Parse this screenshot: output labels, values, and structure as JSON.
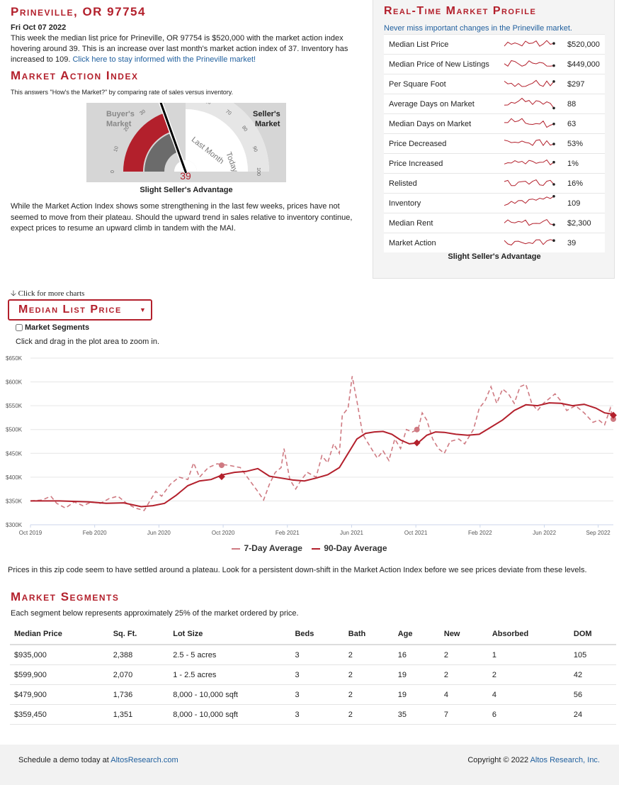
{
  "header": {
    "location": "Prineville, OR 97754",
    "date": "Fri Oct 07 2022",
    "summary": "This week the median list price for Prineville, OR 97754 is $520,000 with the market action index hovering around 39. This is an increase over last month's market action index of 37. Inventory has increased to 109.",
    "summary_link": "Click here to stay informed with the Prineville market!"
  },
  "mai": {
    "title": "Market Action Index",
    "subtitle": "This answers \"How's the Market?\" by comparing rate of sales versus inventory.",
    "buyers_label_1": "Buyer's",
    "buyers_label_2": "Market",
    "sellers_label_1": "Seller's",
    "sellers_label_2": "Market",
    "ticks": [
      "0",
      "10",
      "20",
      "30",
      "40",
      "50",
      "60",
      "70",
      "80",
      "90",
      "100"
    ],
    "last_month_label": "Last Month",
    "today_label": "Today",
    "value": 39,
    "value_text": "39",
    "last_month_value": 37,
    "verdict": "Slight Seller's Advantage",
    "commentary": "While the Market Action Index shows some strengthening in the last few weeks, prices have not seemed to move from their plateau. Should the upward trend in sales relative to inventory continue, expect prices to resume an upward climb in tandem with the MAI."
  },
  "profile": {
    "title": "Real-Time Market Profile",
    "link": "Never miss important changes in the Prineville market.",
    "rows": [
      {
        "label": "Median List Price",
        "value": "$520,000"
      },
      {
        "label": "Median Price of New Listings",
        "value": "$449,000"
      },
      {
        "label": "Per Square Foot",
        "value": "$297"
      },
      {
        "label": "Average Days on Market",
        "value": "88"
      },
      {
        "label": "Median Days on Market",
        "value": "63"
      },
      {
        "label": "Price Decreased",
        "value": "53%"
      },
      {
        "label": "Price Increased",
        "value": "1%"
      },
      {
        "label": "Relisted",
        "value": "16%"
      },
      {
        "label": "Inventory",
        "value": "109"
      },
      {
        "label": "Median Rent",
        "value": "$2,300"
      },
      {
        "label": "Market Action",
        "value": "39"
      }
    ],
    "footer": "Slight Seller's Advantage"
  },
  "chart_controls": {
    "more_charts": "Click for more charts",
    "dropdown_label": "Median List Price",
    "segments_checkbox": "Market Segments",
    "zoom_hint": "Click and drag in the plot area to zoom in."
  },
  "chart_data": {
    "type": "line",
    "title": "Median List Price",
    "ylim": [
      300000,
      650000
    ],
    "y_ticks": [
      "$300K",
      "$350K",
      "$400K",
      "$450K",
      "$500K",
      "$550K",
      "$600K",
      "$650K"
    ],
    "y_tick_values": [
      300000,
      350000,
      400000,
      450000,
      500000,
      550000,
      600000,
      650000
    ],
    "x_ticks": [
      "Oct 2019",
      "Feb 2020",
      "Jun 2020",
      "Oct 2020",
      "Feb 2021",
      "Jun 2021",
      "Oct 2021",
      "Feb 2022",
      "Jun 2022",
      "Sep 2022"
    ],
    "x_tick_pos": [
      0,
      0.1102,
      0.2204,
      0.3306,
      0.4408,
      0.551,
      0.6612,
      0.7714,
      0.8816,
      0.974
    ],
    "series": [
      {
        "name": "7-Day Average",
        "style": "dashed",
        "color": "#cf7a82",
        "points": [
          [
            0,
            350000
          ],
          [
            0.02,
            352000
          ],
          [
            0.035,
            360000
          ],
          [
            0.045,
            345000
          ],
          [
            0.06,
            335000
          ],
          [
            0.075,
            348000
          ],
          [
            0.09,
            340000
          ],
          [
            0.105,
            348000
          ],
          [
            0.12,
            345000
          ],
          [
            0.135,
            355000
          ],
          [
            0.15,
            360000
          ],
          [
            0.165,
            345000
          ],
          [
            0.18,
            335000
          ],
          [
            0.195,
            330000
          ],
          [
            0.205,
            350000
          ],
          [
            0.215,
            370000
          ],
          [
            0.225,
            360000
          ],
          [
            0.24,
            385000
          ],
          [
            0.255,
            400000
          ],
          [
            0.27,
            395000
          ],
          [
            0.28,
            430000
          ],
          [
            0.29,
            400000
          ],
          [
            0.305,
            420000
          ],
          [
            0.32,
            428000
          ],
          [
            0.34,
            425000
          ],
          [
            0.36,
            420000
          ],
          [
            0.375,
            395000
          ],
          [
            0.39,
            370000
          ],
          [
            0.4,
            352000
          ],
          [
            0.41,
            385000
          ],
          [
            0.42,
            410000
          ],
          [
            0.43,
            420000
          ],
          [
            0.435,
            460000
          ],
          [
            0.445,
            395000
          ],
          [
            0.455,
            375000
          ],
          [
            0.465,
            395000
          ],
          [
            0.475,
            410000
          ],
          [
            0.49,
            400000
          ],
          [
            0.5,
            445000
          ],
          [
            0.51,
            430000
          ],
          [
            0.52,
            470000
          ],
          [
            0.53,
            450000
          ],
          [
            0.535,
            530000
          ],
          [
            0.545,
            545000
          ],
          [
            0.552,
            612000
          ],
          [
            0.56,
            560000
          ],
          [
            0.57,
            490000
          ],
          [
            0.58,
            470000
          ],
          [
            0.595,
            440000
          ],
          [
            0.605,
            455000
          ],
          [
            0.615,
            435000
          ],
          [
            0.625,
            480000
          ],
          [
            0.635,
            460000
          ],
          [
            0.645,
            500000
          ],
          [
            0.655,
            495000
          ],
          [
            0.665,
            500000
          ],
          [
            0.672,
            535000
          ],
          [
            0.68,
            520000
          ],
          [
            0.69,
            480000
          ],
          [
            0.7,
            460000
          ],
          [
            0.71,
            450000
          ],
          [
            0.72,
            475000
          ],
          [
            0.735,
            480000
          ],
          [
            0.745,
            470000
          ],
          [
            0.76,
            500000
          ],
          [
            0.77,
            545000
          ],
          [
            0.78,
            560000
          ],
          [
            0.79,
            590000
          ],
          [
            0.8,
            555000
          ],
          [
            0.81,
            585000
          ],
          [
            0.82,
            575000
          ],
          [
            0.83,
            555000
          ],
          [
            0.84,
            590000
          ],
          [
            0.85,
            595000
          ],
          [
            0.86,
            555000
          ],
          [
            0.87,
            540000
          ],
          [
            0.88,
            555000
          ],
          [
            0.89,
            565000
          ],
          [
            0.9,
            575000
          ],
          [
            0.91,
            560000
          ],
          [
            0.92,
            540000
          ],
          [
            0.935,
            550000
          ],
          [
            0.95,
            535000
          ],
          [
            0.965,
            515000
          ],
          [
            0.975,
            520000
          ],
          [
            0.985,
            510000
          ],
          [
            0.995,
            545000
          ],
          [
            1,
            520000
          ]
        ]
      },
      {
        "name": "90-Day Average",
        "style": "solid",
        "color": "#b3202c",
        "points": [
          [
            0,
            350000
          ],
          [
            0.05,
            350000
          ],
          [
            0.1,
            348000
          ],
          [
            0.13,
            345000
          ],
          [
            0.16,
            346000
          ],
          [
            0.19,
            338000
          ],
          [
            0.21,
            340000
          ],
          [
            0.23,
            345000
          ],
          [
            0.25,
            362000
          ],
          [
            0.27,
            382000
          ],
          [
            0.29,
            392000
          ],
          [
            0.31,
            395000
          ],
          [
            0.33,
            405000
          ],
          [
            0.35,
            410000
          ],
          [
            0.37,
            412000
          ],
          [
            0.39,
            418000
          ],
          [
            0.41,
            402000
          ],
          [
            0.43,
            398000
          ],
          [
            0.45,
            394000
          ],
          [
            0.47,
            392000
          ],
          [
            0.49,
            398000
          ],
          [
            0.51,
            405000
          ],
          [
            0.53,
            420000
          ],
          [
            0.545,
            450000
          ],
          [
            0.56,
            480000
          ],
          [
            0.575,
            492000
          ],
          [
            0.59,
            495000
          ],
          [
            0.605,
            496000
          ],
          [
            0.62,
            490000
          ],
          [
            0.635,
            478000
          ],
          [
            0.65,
            470000
          ],
          [
            0.665,
            472000
          ],
          [
            0.68,
            488000
          ],
          [
            0.695,
            495000
          ],
          [
            0.71,
            494000
          ],
          [
            0.73,
            490000
          ],
          [
            0.75,
            488000
          ],
          [
            0.77,
            490000
          ],
          [
            0.79,
            505000
          ],
          [
            0.81,
            520000
          ],
          [
            0.83,
            540000
          ],
          [
            0.85,
            552000
          ],
          [
            0.87,
            550000
          ],
          [
            0.89,
            556000
          ],
          [
            0.91,
            555000
          ],
          [
            0.93,
            550000
          ],
          [
            0.95,
            553000
          ],
          [
            0.97,
            545000
          ],
          [
            0.985,
            535000
          ],
          [
            1,
            532000
          ]
        ]
      }
    ],
    "markers": [
      {
        "series": "7-Day Average",
        "x": 0.328,
        "y": 425000
      },
      {
        "series": "90-Day Average",
        "x": 0.328,
        "y": 401000
      },
      {
        "series": "7-Day Average",
        "x": 0.663,
        "y": 500000
      },
      {
        "series": "90-Day Average",
        "x": 0.663,
        "y": 472000
      },
      {
        "series": "7-Day Average",
        "x": 1,
        "y": 522000
      },
      {
        "series": "90-Day Average",
        "x": 1,
        "y": 530000
      }
    ],
    "legend": [
      "7-Day Average",
      "90-Day Average"
    ]
  },
  "chart_commentary": "Prices in this zip code seem to have settled around a plateau. Look for a persistent down-shift in the Market Action Index before we see prices deviate from these levels.",
  "segments": {
    "title": "Market Segments",
    "subtitle": "Each segment below represents approximately 25% of the market ordered by price.",
    "headers": [
      "Median Price",
      "Sq. Ft.",
      "Lot Size",
      "Beds",
      "Bath",
      "Age",
      "New",
      "Absorbed",
      "DOM"
    ],
    "rows": [
      [
        "$935,000",
        "2,388",
        "2.5 - 5 acres",
        "3",
        "2",
        "16",
        "2",
        "1",
        "105"
      ],
      [
        "$599,900",
        "2,070",
        "1 - 2.5 acres",
        "3",
        "2",
        "19",
        "2",
        "2",
        "42"
      ],
      [
        "$479,900",
        "1,736",
        "8,000 - 10,000 sqft",
        "3",
        "2",
        "19",
        "4",
        "4",
        "56"
      ],
      [
        "$359,450",
        "1,351",
        "8,000 - 10,000 sqft",
        "3",
        "2",
        "35",
        "7",
        "6",
        "24"
      ]
    ]
  },
  "footer": {
    "demo_text": "Schedule a demo today at",
    "demo_link": "AltosResearch.com",
    "copyright": "Copyright © 2022",
    "copyright_link": "Altos Research, Inc."
  },
  "colors": {
    "brand": "#b3202c",
    "link": "#1f5f9e",
    "light": "#cf7a82"
  }
}
